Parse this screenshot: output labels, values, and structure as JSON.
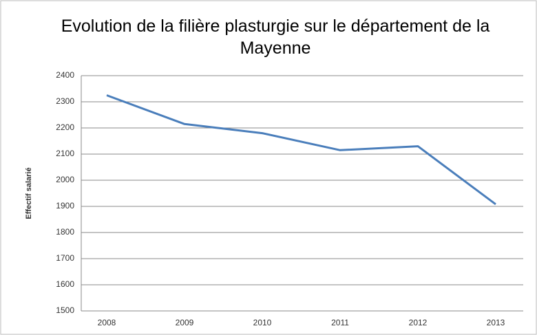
{
  "chart_data": {
    "type": "line",
    "title": "Evolution de la filière plasturgie sur le département de la Mayenne",
    "y_label": "Effectif salarié",
    "categories": [
      "2008",
      "2009",
      "2010",
      "2011",
      "2012",
      "2013"
    ],
    "series": [
      {
        "name": "Effectif salarié",
        "color": "#4a7ebb",
        "values": [
          2325,
          2215,
          2180,
          2115,
          2130,
          1908
        ]
      }
    ],
    "ylim": [
      1500,
      2400
    ],
    "yticks": [
      1500,
      1600,
      1700,
      1800,
      1900,
      2000,
      2100,
      2200,
      2300,
      2400
    ],
    "grid": true
  }
}
